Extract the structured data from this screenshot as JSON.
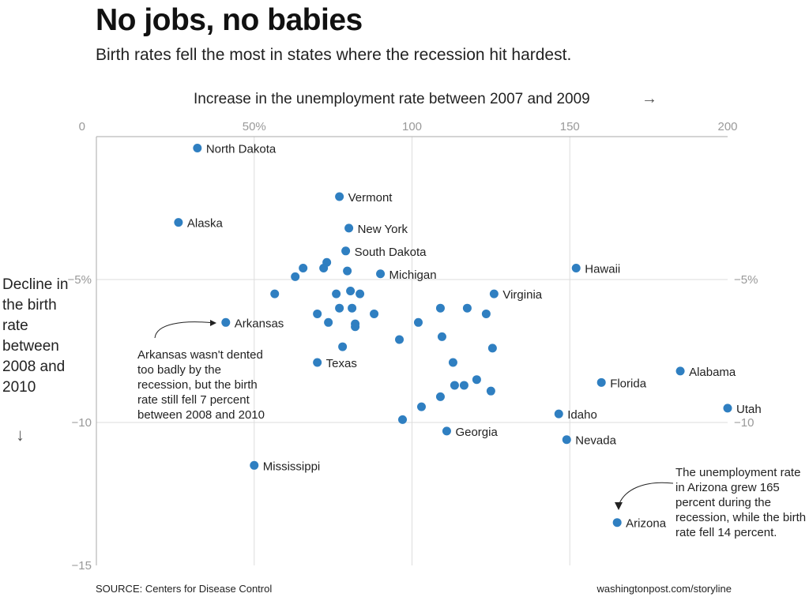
{
  "header": {
    "title": "No jobs, no babies",
    "subtitle": "Birth rates fell the most in states where the recession hit hardest."
  },
  "axes": {
    "xlabel": "Increase in the unemployment rate between 2007 and 2009",
    "xarrow": "→",
    "ylabel": "Decline in the birth rate between 2008 and 2010",
    "yarrow": "↓"
  },
  "annotations": {
    "arkansas": "Arkansas wasn't dented too badly by the recession, but the birth rate still fell 7 percent between 2008 and 2010",
    "arizona": "The unemployment rate in Arizona grew 165 percent during the recession, while the birth rate fell 14 percent."
  },
  "footer": {
    "source": "SOURCE: Centers for Disease Control",
    "credit": "washingtonpost.com/storyline"
  },
  "colors": {
    "point": "#2f7fc1",
    "grid": "#dddddd",
    "frame": "#aaaaaa"
  },
  "chart_data": {
    "type": "scatter",
    "title": "No jobs, no babies",
    "xlabel": "Increase in the unemployment rate between 2007 and 2009",
    "ylabel": "Decline in the birth rate between 2008 and 2010",
    "xlim": [
      0,
      200
    ],
    "ylim": [
      -15,
      0
    ],
    "x_ticks": [
      {
        "v": 0,
        "label": "0"
      },
      {
        "v": 50,
        "label": "50%"
      },
      {
        "v": 100,
        "label": "100"
      },
      {
        "v": 150,
        "label": "150"
      },
      {
        "v": 200,
        "label": "200"
      }
    ],
    "y_ticks_left": [
      {
        "v": -5,
        "label": "−5%"
      },
      {
        "v": -10,
        "label": "−10"
      },
      {
        "v": -15,
        "label": "−15"
      }
    ],
    "y_ticks_right": [
      {
        "v": -5,
        "label": "−5%"
      },
      {
        "v": -10,
        "label": "−10"
      }
    ],
    "grid": true,
    "points": [
      {
        "label": "North Dakota",
        "x": 32,
        "y": -0.4
      },
      {
        "label": "Vermont",
        "x": 77,
        "y": -2.1
      },
      {
        "label": "Alaska",
        "x": 26,
        "y": -3.0
      },
      {
        "label": "New York",
        "x": 80,
        "y": -3.2
      },
      {
        "label": "South Dakota",
        "x": 79,
        "y": -4.0
      },
      {
        "label": "Hawaii",
        "x": 152,
        "y": -4.6
      },
      {
        "label": "Michigan",
        "x": 90,
        "y": -4.8
      },
      {
        "label": "Virginia",
        "x": 126,
        "y": -5.5
      },
      {
        "label": "Arkansas",
        "x": 41,
        "y": -6.5
      },
      {
        "label": "Texas",
        "x": 70,
        "y": -7.9
      },
      {
        "label": "Alabama",
        "x": 185,
        "y": -8.2
      },
      {
        "label": "Florida",
        "x": 160,
        "y": -8.6
      },
      {
        "label": "Idaho",
        "x": 146.5,
        "y": -9.7
      },
      {
        "label": "Utah",
        "x": 200,
        "y": -9.5
      },
      {
        "label": "Georgia",
        "x": 111,
        "y": -10.3
      },
      {
        "label": "Nevada",
        "x": 149,
        "y": -10.6
      },
      {
        "label": "Mississippi",
        "x": 50,
        "y": -11.5
      },
      {
        "label": "Arizona",
        "x": 165,
        "y": -13.5
      },
      {
        "x": 73,
        "y": -4.4
      },
      {
        "x": 65.5,
        "y": -4.6
      },
      {
        "x": 72,
        "y": -4.6
      },
      {
        "x": 79.5,
        "y": -4.7
      },
      {
        "x": 63,
        "y": -4.9
      },
      {
        "x": 56.5,
        "y": -5.5
      },
      {
        "x": 76,
        "y": -5.5
      },
      {
        "x": 80.5,
        "y": -5.4
      },
      {
        "x": 83.5,
        "y": -5.5
      },
      {
        "x": 77,
        "y": -6.0
      },
      {
        "x": 81,
        "y": -6.0
      },
      {
        "x": 70,
        "y": -6.2
      },
      {
        "x": 73.5,
        "y": -6.5
      },
      {
        "x": 88,
        "y": -6.2
      },
      {
        "x": 82,
        "y": -6.55
      },
      {
        "x": 82,
        "y": -6.65
      },
      {
        "x": 102,
        "y": -6.5
      },
      {
        "x": 109,
        "y": -6.0
      },
      {
        "x": 117.5,
        "y": -6.0
      },
      {
        "x": 123.5,
        "y": -6.2
      },
      {
        "x": 96,
        "y": -7.1
      },
      {
        "x": 109.5,
        "y": -7.0
      },
      {
        "x": 125.5,
        "y": -7.4
      },
      {
        "x": 78,
        "y": -7.35
      },
      {
        "x": 113,
        "y": -7.9
      },
      {
        "x": 113.5,
        "y": -8.7
      },
      {
        "x": 116.5,
        "y": -8.7
      },
      {
        "x": 120.5,
        "y": -8.5
      },
      {
        "x": 125,
        "y": -8.9
      },
      {
        "x": 109,
        "y": -9.1
      },
      {
        "x": 103,
        "y": -9.45
      },
      {
        "x": 97,
        "y": -9.9
      }
    ]
  }
}
